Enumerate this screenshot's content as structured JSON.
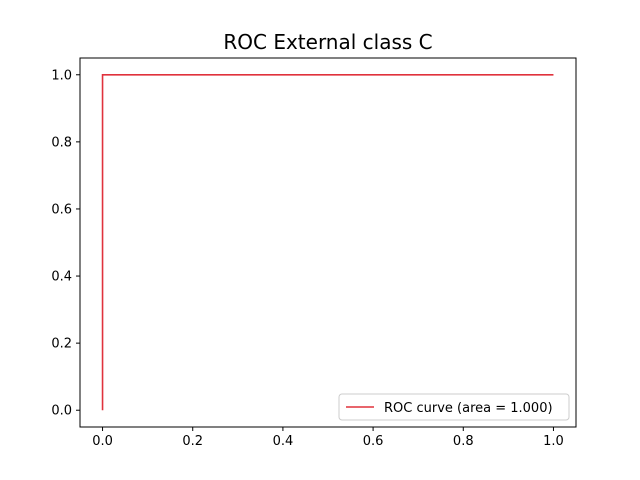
{
  "chart_data": {
    "type": "line",
    "title": "ROC External class C",
    "xlabel": "",
    "ylabel": "",
    "xlim": [
      -0.05,
      1.05
    ],
    "ylim": [
      -0.05,
      1.05
    ],
    "xticks": [
      0.0,
      0.2,
      0.4,
      0.6,
      0.8,
      1.0
    ],
    "yticks": [
      0.0,
      0.2,
      0.4,
      0.6,
      0.8,
      1.0
    ],
    "xtick_labels": [
      "0.0",
      "0.2",
      "0.4",
      "0.6",
      "0.8",
      "1.0"
    ],
    "ytick_labels": [
      "0.0",
      "0.2",
      "0.4",
      "0.6",
      "0.8",
      "1.0"
    ],
    "grid": false,
    "legend_position": "lower-right",
    "series": [
      {
        "name": "ROC curve (area = 1.000)",
        "color": "#e0323c",
        "x": [
          0.0,
          0.0,
          1.0
        ],
        "y": [
          0.0,
          1.0,
          1.0
        ]
      }
    ]
  }
}
